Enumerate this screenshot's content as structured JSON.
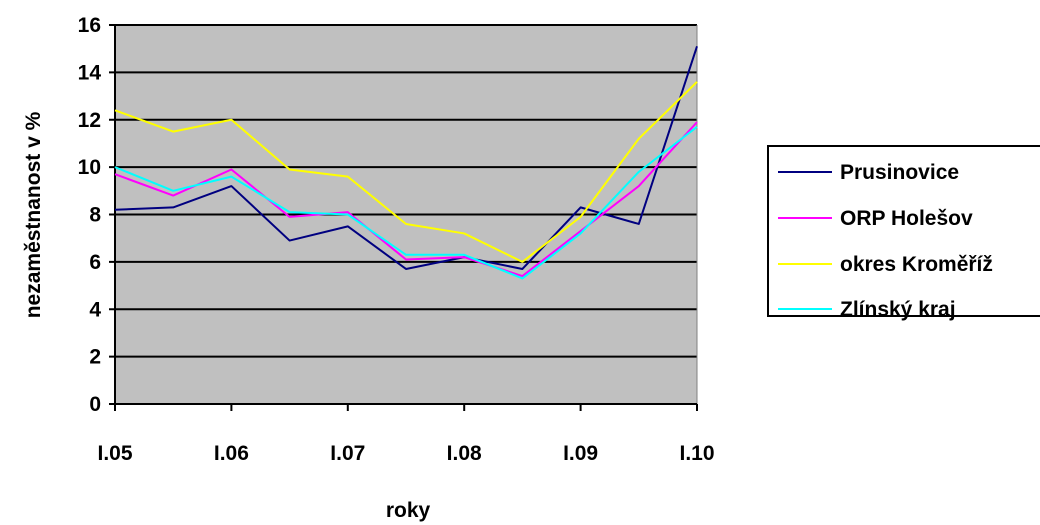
{
  "chart_data": {
    "type": "line",
    "title": "",
    "xlabel": "roky",
    "ylabel": "nezaměstnanost v %",
    "ylim": [
      0,
      16
    ],
    "y_ticks": [
      "0",
      "2",
      "4",
      "6",
      "8",
      "10",
      "12",
      "14",
      "16"
    ],
    "categories": [
      "I.05",
      "I.06",
      "I.07",
      "I.08",
      "I.09",
      "I.10"
    ],
    "x": [
      0,
      0.5,
      1,
      1.5,
      2,
      2.5,
      3,
      3.5,
      4,
      4.5,
      5
    ],
    "grid": true,
    "plot_background": "#c0c0c0",
    "legend_position": "right",
    "series": [
      {
        "name": "Prusinovice",
        "color": "#000080",
        "values": [
          8.2,
          8.3,
          9.2,
          6.9,
          7.5,
          5.7,
          6.2,
          5.7,
          8.3,
          7.6,
          15.1
        ]
      },
      {
        "name": "ORP Holešov",
        "color": "#ff00ff",
        "values": [
          9.7,
          8.8,
          9.9,
          7.9,
          8.1,
          6.1,
          6.2,
          5.4,
          7.3,
          9.2,
          11.9
        ]
      },
      {
        "name": "okres Kroměříž",
        "color": "#ffff00",
        "values": [
          12.4,
          11.5,
          12.0,
          9.9,
          9.6,
          7.6,
          7.2,
          6.0,
          7.9,
          11.2,
          13.6
        ]
      },
      {
        "name": "Zlínský kraj",
        "color": "#00ffff",
        "values": [
          10.0,
          9.0,
          9.6,
          8.1,
          8.0,
          6.3,
          6.3,
          5.3,
          7.2,
          9.8,
          11.7
        ]
      }
    ]
  }
}
